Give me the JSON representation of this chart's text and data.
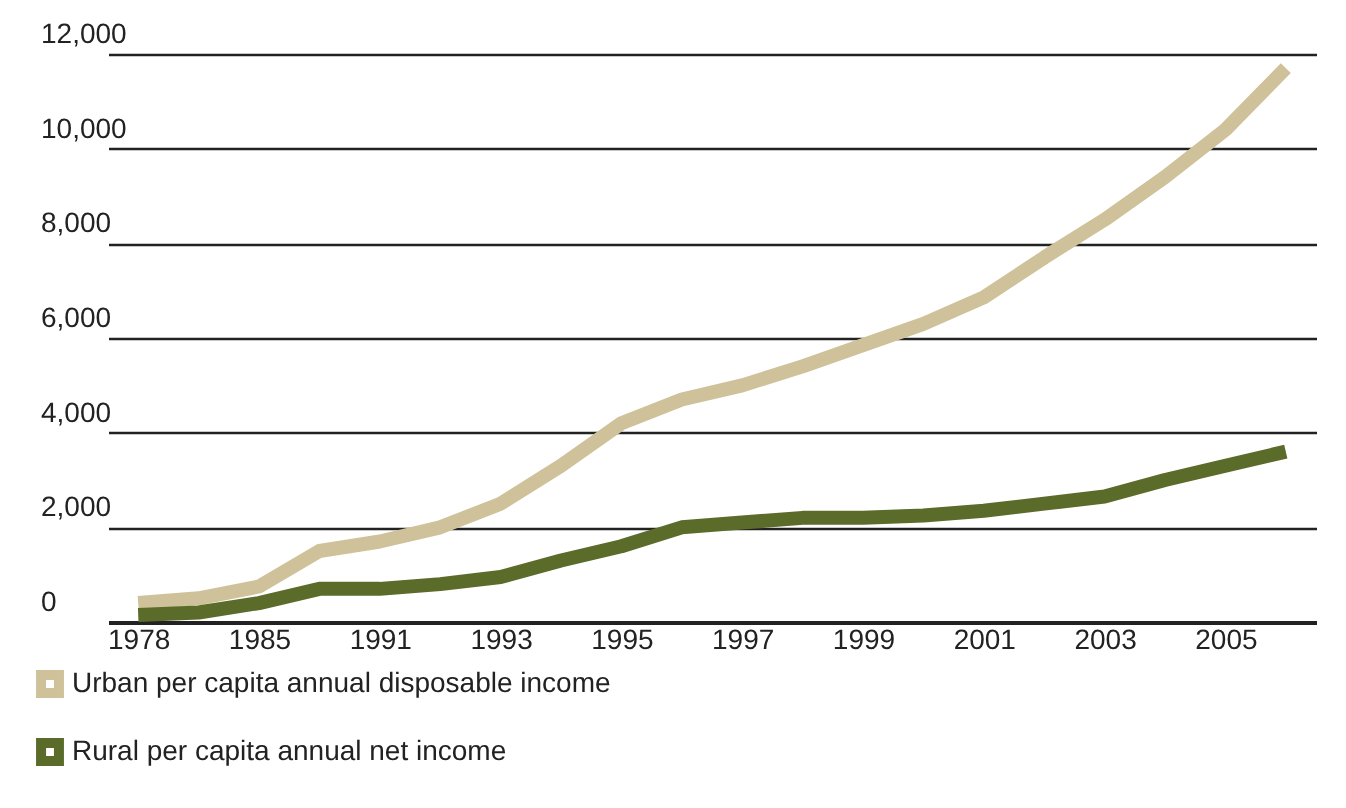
{
  "chart_data": {
    "type": "line",
    "categories": [
      "1978",
      null,
      "1985",
      null,
      "1991",
      null,
      "1993",
      null,
      "1995",
      null,
      "1997",
      null,
      "1999",
      null,
      "2001",
      null,
      "2003",
      null,
      "2005",
      null
    ],
    "series": [
      {
        "name": "Urban per capita annual disposable income",
        "color": "#cfc29a",
        "values": [
          400,
          500,
          750,
          1500,
          1700,
          2000,
          2500,
          3300,
          4200,
          4700,
          5000,
          5400,
          5850,
          6300,
          6860,
          7700,
          8500,
          9400,
          10400,
          11700
        ]
      },
      {
        "name": "Rural per capita annual net income",
        "color": "#5a6b2a",
        "values": [
          150,
          200,
          400,
          700,
          700,
          800,
          950,
          1300,
          1600,
          2000,
          2100,
          2200,
          2200,
          2250,
          2350,
          2500,
          2650,
          3000,
          3300,
          3600
        ]
      }
    ],
    "ylim": [
      0,
      12000
    ],
    "yticks": [
      0,
      {
        "value": 2000,
        "label": "2,000"
      },
      {
        "value": 4000,
        "label": "4,000"
      },
      {
        "value": 6000,
        "label": "6,000"
      },
      {
        "value": 8000,
        "label": "8,000"
      },
      {
        "value": 10000,
        "label": "10,000"
      },
      {
        "value": 12000,
        "label": "12,000"
      }
    ],
    "grid": "y",
    "legend": "bottom",
    "marker": "none",
    "line_style": "solid"
  }
}
